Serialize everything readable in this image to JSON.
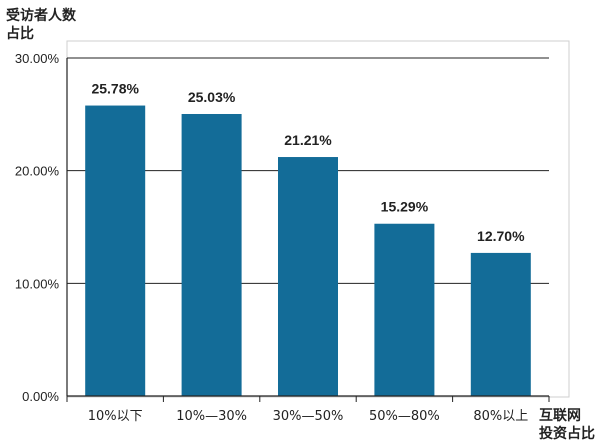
{
  "chart_data": {
    "type": "bar",
    "ylabel_lines": [
      "受访者人数",
      "占比"
    ],
    "xlabel_lines": [
      "互联网",
      "投资占比"
    ],
    "categories": [
      "10%以下",
      "10%—30%",
      "30%—50%",
      "50%—80%",
      "80%以上"
    ],
    "values": [
      25.78,
      25.03,
      21.21,
      15.29,
      12.7
    ],
    "data_labels": [
      "25.78%",
      "25.03%",
      "21.21%",
      "15.29%",
      "12.70%"
    ],
    "yticks": [
      0,
      10,
      20,
      30
    ],
    "ytick_labels": [
      "0.00%",
      "10.00%",
      "20.00%",
      "30.00%"
    ],
    "ylim": [
      0,
      30
    ],
    "grid": true,
    "bar_color": "#136c98",
    "grid_color": "#222222"
  }
}
